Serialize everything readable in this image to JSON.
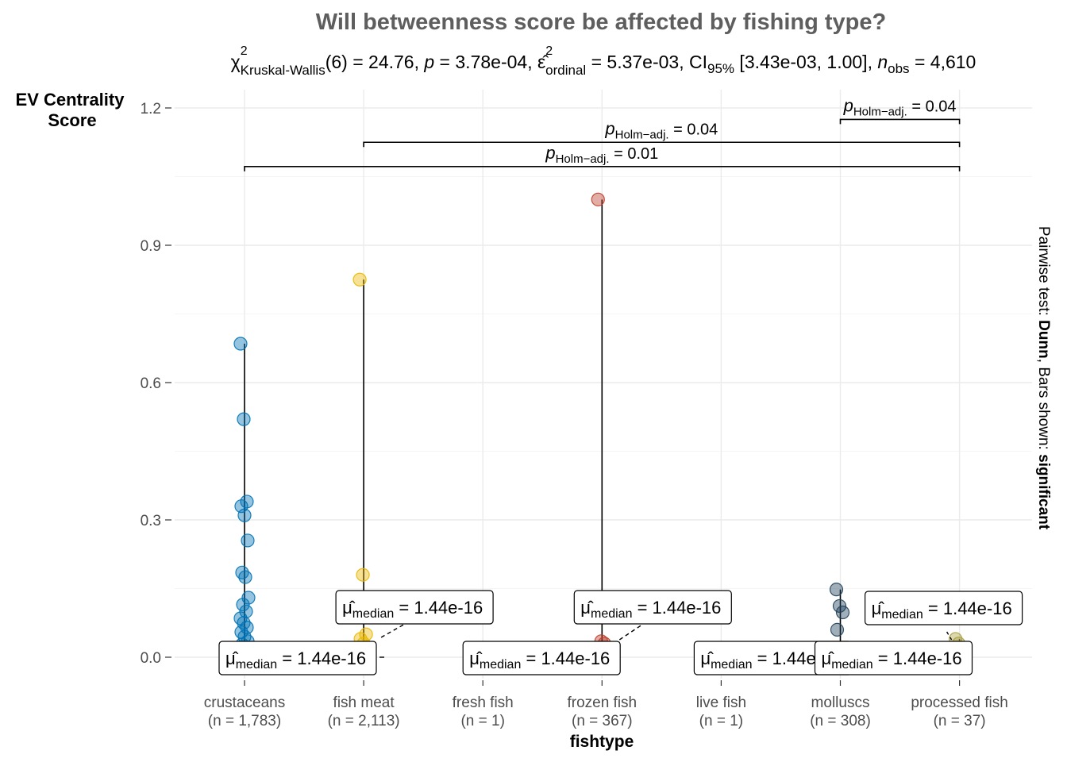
{
  "chart_data": {
    "type": "scatter",
    "title": "Will betweenness score be affected by fishing type?",
    "subtitle": {
      "chi_sym": "χ",
      "chi_sup": "2",
      "chi_sub": "Kruskal-Wallis",
      "df": "(6)",
      "eq": " = ",
      "chi_val": "24.76",
      "sep": ", ",
      "p_sym": "p",
      "p_val": "3.78e-04",
      "eps_sym": "ε̂",
      "eps_sup": "2",
      "eps_sub": "ordinal",
      "eps_val": "5.37e-03",
      "ci": "CI",
      "ci_sub": "95%",
      "ci_val": " [3.43e-03, 1.00]",
      "n_sym": "n",
      "n_sub": "obs",
      "n_val": "4,610"
    },
    "ylabel_line1": "EV Centrality",
    "ylabel_line2": "Score",
    "xlabel": "fishtype",
    "ylim": [
      -0.05,
      1.24
    ],
    "yticks": [
      {
        "value": 0.0,
        "label": "0.0"
      },
      {
        "value": 0.3,
        "label": "0.3"
      },
      {
        "value": 0.6,
        "label": "0.6"
      },
      {
        "value": 0.9,
        "label": "0.9"
      },
      {
        "value": 1.2,
        "label": "1.2"
      }
    ],
    "grid": true,
    "side_caption": {
      "pre": "Pairwise test: ",
      "test": "Dunn",
      "mid": ", Bars shown: ",
      "shown": "significant"
    },
    "categories": [
      {
        "name": "crustaceans",
        "n": "(n = 1,783)",
        "color": "#0072B5",
        "points": [
          0.685,
          0.52,
          0.34,
          0.33,
          0.31,
          0.255,
          0.185,
          0.175,
          0.13,
          0.115,
          0.1,
          0.085,
          0.075,
          0.065,
          0.055,
          0.045,
          0.035,
          0.028,
          0.02,
          0.012,
          0.006,
          0.0,
          0.0
        ],
        "median_label_pos": "below-left"
      },
      {
        "name": "fish meat",
        "n": "(n = 2,113)",
        "color": "#E9B800",
        "points": [
          0.825,
          0.18,
          0.05,
          0.04,
          0.03,
          0.02,
          0.01,
          0.005,
          0.0,
          0.0
        ],
        "median_label_pos": "above-right"
      },
      {
        "name": "fresh fish",
        "n": "(n = 1)",
        "color": "#6F99AD",
        "points": [],
        "median_label_pos": "below-left"
      },
      {
        "name": "frozen fish",
        "n": "(n = 367)",
        "color": "#BC3C29",
        "points": [
          1.0,
          0.035,
          0.03,
          0.02,
          0.01,
          0.0
        ],
        "median_label_pos": "above-right"
      },
      {
        "name": "live fish",
        "n": "(n = 1)",
        "color": "#7876B1",
        "points": [],
        "median_label_pos": "below-right"
      },
      {
        "name": "molluscs",
        "n": "(n = 308)",
        "color": "#20405A",
        "points": [
          0.148,
          0.112,
          0.098,
          0.06,
          0.02,
          0.0
        ],
        "median_label_pos": "below-right"
      },
      {
        "name": "processed fish",
        "n": "(n = 37)",
        "color": "#A9A040",
        "points": [
          0.04,
          0.03,
          0.005,
          0.0
        ],
        "median_label_pos": "above-left"
      }
    ],
    "median_label": {
      "mu": "μ̂",
      "sub": "median",
      "eq": " = ",
      "value": "1.44e-16"
    },
    "pairwise_bars": [
      {
        "from": 5,
        "to": 6,
        "y": 1.175,
        "p_sym": "p",
        "p_sub": "Holm−adj.",
        "p_val": " = 0.04"
      },
      {
        "from": 1,
        "to": 6,
        "y": 1.125,
        "p_sym": "p",
        "p_sub": "Holm−adj.",
        "p_val": " = 0.04"
      },
      {
        "from": 0,
        "to": 6,
        "y": 1.072,
        "p_sym": "p",
        "p_sub": "Holm−adj.",
        "p_val": " = 0.01"
      }
    ]
  }
}
